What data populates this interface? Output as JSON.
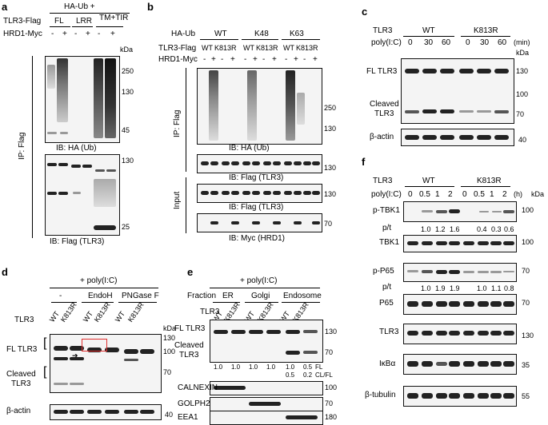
{
  "panels": {
    "a": {
      "label": "a",
      "header": "HA-Ub +",
      "row1_label": "TLR3-Flag",
      "constructs": [
        "FL",
        "LRR",
        "TM+TIR"
      ],
      "row2_label": "HRD1-Myc",
      "signs": [
        "-",
        "+",
        "-",
        "+",
        "-",
        "+"
      ],
      "kda": "kDa",
      "markers_top": [
        "250",
        "130",
        "45"
      ],
      "markers_bottom": [
        "130",
        "25"
      ],
      "ib_top": "IB: HA (Ub)",
      "ib_bottom": "IB: Flag (TLR3)",
      "side": "IP: Flag"
    },
    "b": {
      "label": "b",
      "row1_label": "HA-Ub",
      "groups": [
        "WT",
        "K48",
        "K63"
      ],
      "row2_label": "TLR3-Flag",
      "lanes2": [
        "WT",
        "K813R",
        "WT",
        "K813R",
        "WT",
        "K813R"
      ],
      "row3_label": "HRD1-Myc",
      "signs": [
        "-",
        "+",
        "-",
        "+",
        "-",
        "+",
        "-",
        "+",
        "-",
        "+",
        "-",
        "+"
      ],
      "markers1": [
        "250",
        "130"
      ],
      "marker2": "130",
      "marker3": "130",
      "marker4": "70",
      "ib1": "IB: HA (Ub)",
      "ib2": "IB: Flag (TLR3)",
      "ib3": "IB: Flag (TLR3)",
      "ib4": "IB: Myc (HRD1)",
      "side_ip": "IP: Flag",
      "side_input": "Input"
    },
    "c": {
      "label": "c",
      "row1_label": "TLR3",
      "groups": [
        "WT",
        "K813R"
      ],
      "row2_label": "poly(I:C)",
      "times": [
        "0",
        "30",
        "60",
        "0",
        "30",
        "60"
      ],
      "unit": "(min)",
      "kda": "kDa",
      "fl_label": "FL TLR3",
      "cleaved_label_1": "Cleaved",
      "cleaved_label_2": "TLR3",
      "markers": [
        "130",
        "100",
        "70"
      ],
      "actin_label": "β-actin",
      "actin_marker": "40"
    },
    "d": {
      "label": "d",
      "header": "+ poly(I:C)",
      "treat": [
        "-",
        "EndoH",
        "PNGase F"
      ],
      "row_label": "TLR3",
      "lanes": [
        "WT",
        "K813R",
        "WT",
        "K813R",
        "WT",
        "K813R"
      ],
      "kda": "kDa",
      "markers": [
        "130",
        "100",
        "70"
      ],
      "fl_label": "FL TLR3",
      "cleaved_label_1": "Cleaved",
      "cleaved_label_2": "TLR3",
      "actin_label": "β-actin",
      "actin_marker": "40"
    },
    "e": {
      "label": "e",
      "header": "+ poly(I:C)",
      "fraction_label": "Fraction",
      "fractions": [
        "ER",
        "Golgi",
        "Endosome"
      ],
      "row_label": "TLR3",
      "lanes": [
        "WT",
        "K813R",
        "WT",
        "K813R",
        "WT",
        "K813R"
      ],
      "fl_label": "FL TLR3",
      "cleaved_label_1": "Cleaved",
      "cleaved_label_2": "TLR3",
      "markers": [
        "130",
        "70"
      ],
      "fl_quant": [
        "1.0",
        "1.0",
        "1.0",
        "1.0",
        "1.0",
        "0.5"
      ],
      "cl_quant": [
        "0.5",
        "0.2"
      ],
      "fl_tag": "FL",
      "cl_tag": "CL/FL",
      "calnexin": "CALNEXIN",
      "calnexin_marker": "100",
      "golph2": "GOLPH2",
      "golph2_marker": "70",
      "eea1": "EEA1",
      "eea1_marker": "180"
    },
    "f": {
      "label": "f",
      "row1_label": "TLR3",
      "groups": [
        "WT",
        "K813R"
      ],
      "row2_label": "poly(I:C)",
      "times": [
        "0",
        "0.5",
        "1",
        "2",
        "0",
        "0.5",
        "1",
        "2"
      ],
      "unit": "(h)",
      "kda": "kDa",
      "ptbk1": "p-TBK1",
      "ptbk1_marker": "100",
      "pt_label": "p/t",
      "ptbk1_vals": [
        "1.0",
        "1.2",
        "1.6",
        "0.4",
        "0.3",
        "0.6"
      ],
      "tbk1": "TBK1",
      "tbk1_marker": "100",
      "pp65": "p-P65",
      "pp65_marker": "70",
      "pp65_vals": [
        "1.0",
        "1.9",
        "1.9",
        "1.0",
        "1.1",
        "0.8"
      ],
      "p65": "P65",
      "p65_marker": "70",
      "tlr3": "TLR3",
      "tlr3_marker": "130",
      "ikba": "IκBα",
      "ikba_marker": "35",
      "tubulin": "β-tubulin",
      "tubulin_marker": "55"
    }
  }
}
